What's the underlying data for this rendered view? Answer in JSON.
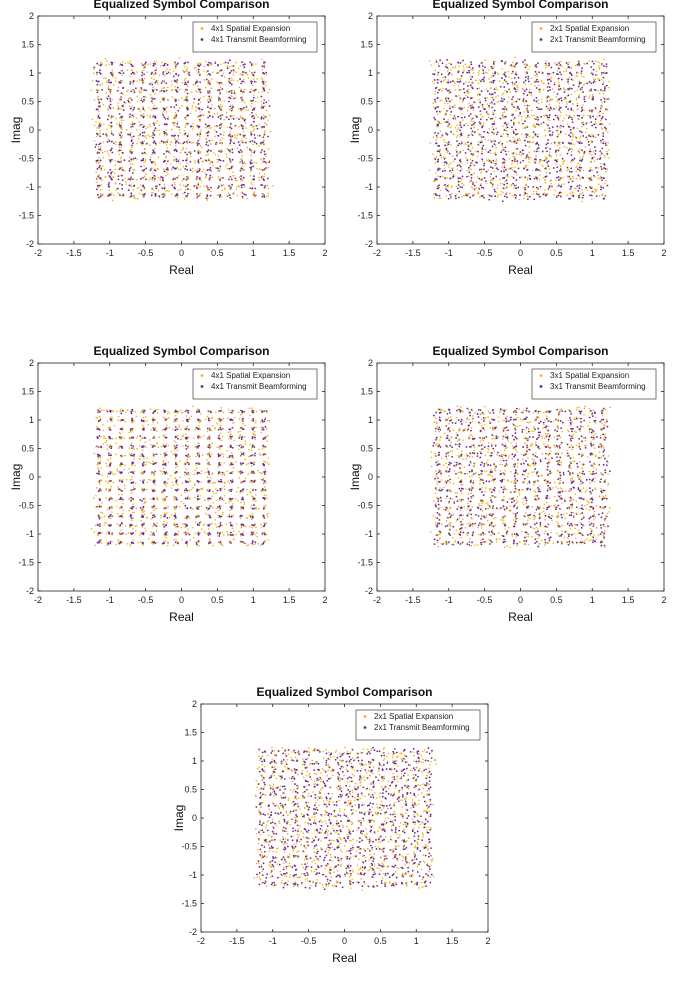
{
  "colors": {
    "spatial_expansion": "#f2b21a",
    "transmit_beamforming": "#6a2c91"
  },
  "chart_data": [
    {
      "type": "scatter",
      "title": "Equalized Symbol Comparison",
      "xlabel": "Real",
      "ylabel": "Imag",
      "xlim": [
        -2,
        2
      ],
      "ylim": [
        -2,
        2
      ],
      "xticks": [
        "-2",
        "-1.5",
        "-1",
        "-0.5",
        "0",
        "0.5",
        "1",
        "1.5",
        "2"
      ],
      "yticks": [
        "-2",
        "-1.5",
        "-1",
        "-0.5",
        "0",
        "0.5",
        "1",
        "1.5",
        "2"
      ],
      "grid": false,
      "legend_position": "top-right",
      "series": [
        {
          "name": "4x1 Spatial Expansion",
          "marker": "point",
          "color": "#f2b21a"
        },
        {
          "name": "4x1 Transmit Beamforming",
          "marker": "point",
          "color": "#6a2c91"
        }
      ],
      "constellation": {
        "levels_per_axis": 16,
        "min": -1.15,
        "max": 1.15,
        "spread_spatial": 0.045,
        "spread_beamforming": 0.025
      }
    },
    {
      "type": "scatter",
      "title": "Equalized Symbol Comparison",
      "xlabel": "Real",
      "ylabel": "Imag",
      "xlim": [
        -2,
        2
      ],
      "ylim": [
        -2,
        2
      ],
      "xticks": [
        "-2",
        "-1.5",
        "-1",
        "-0.5",
        "0",
        "0.5",
        "1",
        "1.5",
        "2"
      ],
      "yticks": [
        "-2",
        "-1.5",
        "-1",
        "-0.5",
        "0",
        "0.5",
        "1",
        "1.5",
        "2"
      ],
      "grid": false,
      "legend_position": "top-right",
      "series": [
        {
          "name": "2x1 Spatial Expansion",
          "marker": "point",
          "color": "#f2b21a"
        },
        {
          "name": "2x1 Transmit Beamforming",
          "marker": "point",
          "color": "#6a2c91"
        }
      ],
      "constellation": {
        "levels_per_axis": 16,
        "min": -1.15,
        "max": 1.15,
        "spread_spatial": 0.05,
        "spread_beamforming": 0.035
      }
    },
    {
      "type": "scatter",
      "title": "Equalized Symbol Comparison",
      "xlabel": "Real",
      "ylabel": "Imag",
      "xlim": [
        -2,
        2
      ],
      "ylim": [
        -2,
        2
      ],
      "xticks": [
        "-2",
        "-1.5",
        "-1",
        "-0.5",
        "0",
        "0.5",
        "1",
        "1.5",
        "2"
      ],
      "yticks": [
        "-2",
        "-1.5",
        "-1",
        "-0.5",
        "0",
        "0.5",
        "1",
        "1.5",
        "2"
      ],
      "grid": false,
      "legend_position": "top-right",
      "series": [
        {
          "name": "4x1 Spatial Expansion",
          "marker": "point",
          "color": "#f2b21a"
        },
        {
          "name": "4x1 Transmit Beamforming",
          "marker": "point",
          "color": "#6a2c91"
        }
      ],
      "constellation": {
        "levels_per_axis": 16,
        "min": -1.15,
        "max": 1.15,
        "spread_spatial": 0.04,
        "spread_beamforming": 0.015
      }
    },
    {
      "type": "scatter",
      "title": "Equalized Symbol Comparison",
      "xlabel": "Real",
      "ylabel": "Imag",
      "xlim": [
        -2,
        2
      ],
      "ylim": [
        -2,
        2
      ],
      "xticks": [
        "-2",
        "-1.5",
        "-1",
        "-0.5",
        "0",
        "0.5",
        "1",
        "1.5",
        "2"
      ],
      "yticks": [
        "-2",
        "-1.5",
        "-1",
        "-0.5",
        "0",
        "0.5",
        "1",
        "1.5",
        "2"
      ],
      "grid": false,
      "legend_position": "top-right",
      "series": [
        {
          "name": "3x1 Spatial Expansion",
          "marker": "point",
          "color": "#f2b21a"
        },
        {
          "name": "3x1 Transmit Beamforming",
          "marker": "point",
          "color": "#6a2c91"
        }
      ],
      "constellation": {
        "levels_per_axis": 16,
        "min": -1.15,
        "max": 1.15,
        "spread_spatial": 0.045,
        "spread_beamforming": 0.03
      }
    },
    {
      "type": "scatter",
      "title": "Equalized Symbol Comparison",
      "xlabel": "Real",
      "ylabel": "Imag",
      "xlim": [
        -2,
        2
      ],
      "ylim": [
        -2,
        2
      ],
      "xticks": [
        "-2",
        "-1.5",
        "-1",
        "-0.5",
        "0",
        "0.5",
        "1",
        "1.5",
        "2"
      ],
      "yticks": [
        "-2",
        "-1.5",
        "-1",
        "-0.5",
        "0",
        "0.5",
        "1",
        "1.5",
        "2"
      ],
      "grid": false,
      "legend_position": "top-right",
      "series": [
        {
          "name": "2x1 Spatial Expansion",
          "marker": "point",
          "color": "#f2b21a"
        },
        {
          "name": "2x1 Transmit Beamforming",
          "marker": "point",
          "color": "#6a2c91"
        }
      ],
      "constellation": {
        "levels_per_axis": 16,
        "min": -1.15,
        "max": 1.15,
        "spread_spatial": 0.05,
        "spread_beamforming": 0.035
      }
    }
  ]
}
